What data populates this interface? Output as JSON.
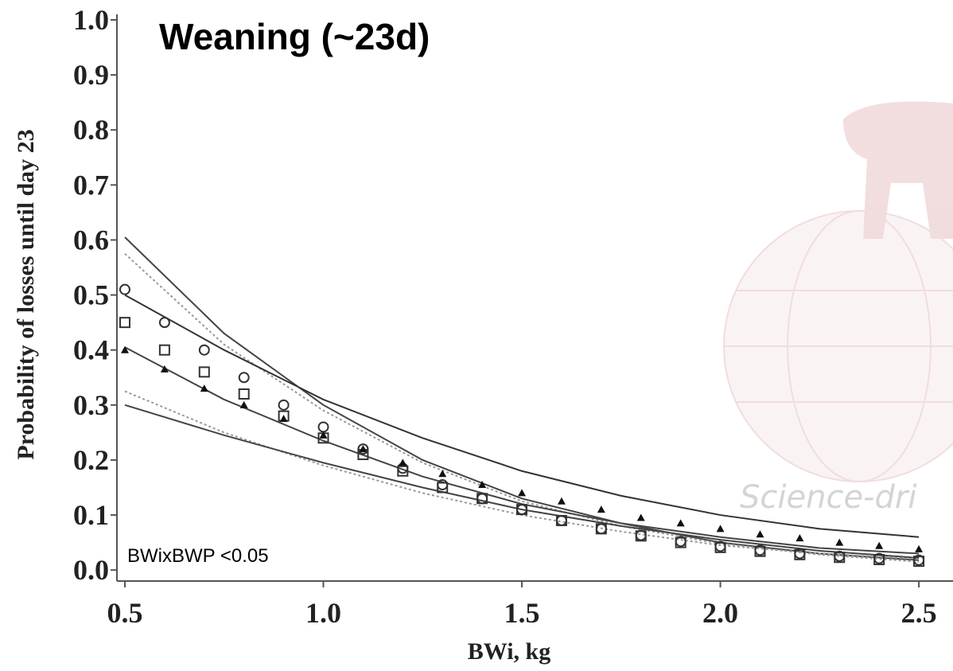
{
  "chart_data": {
    "type": "scatter",
    "title": "Weaning (~23d)",
    "x_label": "BWi, kg",
    "y_label": "Probability of losses until day 23",
    "annotation": "BWixBWP <0.05",
    "watermark": "Science-dri",
    "xlim": [
      0.48,
      2.58
    ],
    "ylim": [
      -0.02,
      1.0
    ],
    "xticks": [
      0.5,
      {
        "value": 1,
        "label": "1.0"
      },
      1.5,
      {
        "value": 2,
        "label": "2.0"
      },
      2.5
    ],
    "yticks": [
      {
        "value": 0,
        "label": "0.0"
      },
      0.1,
      0.2,
      0.3,
      0.4,
      0.5,
      0.6,
      0.7,
      0.8,
      0.9,
      {
        "value": 1,
        "label": "1.0"
      }
    ],
    "x": [
      0.5,
      0.6,
      0.7,
      0.8,
      0.9,
      1.0,
      1.1,
      1.2,
      1.3,
      1.4,
      1.5,
      1.6,
      1.7,
      1.8,
      1.9,
      2.0,
      2.1,
      2.2,
      2.3,
      2.4,
      2.5
    ],
    "series": [
      {
        "marker": "circle",
        "color": "#333",
        "values": [
          0.51,
          0.45,
          0.4,
          0.35,
          0.3,
          0.26,
          0.22,
          0.185,
          0.155,
          0.13,
          0.11,
          0.09,
          0.075,
          0.063,
          0.052,
          0.043,
          0.036,
          0.03,
          0.025,
          0.021,
          0.018
        ]
      },
      {
        "marker": "square",
        "color": "#333",
        "values": [
          0.45,
          0.4,
          0.36,
          0.32,
          0.28,
          0.24,
          0.21,
          0.18,
          0.15,
          0.13,
          0.11,
          0.09,
          0.075,
          0.062,
          0.05,
          0.041,
          0.034,
          0.028,
          0.023,
          0.019,
          0.016
        ]
      },
      {
        "marker": "triangle",
        "color": "#111",
        "values": [
          0.4,
          0.365,
          0.33,
          0.3,
          0.275,
          0.245,
          0.22,
          0.195,
          0.175,
          0.155,
          0.14,
          0.125,
          0.11,
          0.095,
          0.085,
          0.075,
          0.065,
          0.058,
          0.05,
          0.044,
          0.038
        ]
      }
    ],
    "curves": {
      "x": [
        0.5,
        0.75,
        1.0,
        1.25,
        1.5,
        1.75,
        2.0,
        2.25,
        2.5
      ],
      "lines": [
        {
          "color": "#444",
          "dash": false,
          "values": [
            0.605,
            0.43,
            0.3,
            0.2,
            0.13,
            0.085,
            0.05,
            0.03,
            0.018
          ]
        },
        {
          "color": "#999",
          "dash": true,
          "values": [
            0.575,
            0.41,
            0.29,
            0.195,
            0.125,
            0.08,
            0.048,
            0.028,
            0.015
          ]
        },
        {
          "color": "#333",
          "dash": false,
          "values": [
            0.5,
            0.4,
            0.31,
            0.24,
            0.18,
            0.135,
            0.1,
            0.075,
            0.06
          ]
        },
        {
          "color": "#444",
          "dash": false,
          "values": [
            0.405,
            0.31,
            0.235,
            0.17,
            0.12,
            0.085,
            0.06,
            0.04,
            0.03
          ]
        },
        {
          "color": "#999",
          "dash": true,
          "values": [
            0.325,
            0.25,
            0.19,
            0.14,
            0.1,
            0.07,
            0.045,
            0.03,
            0.02
          ]
        },
        {
          "color": "#444",
          "dash": false,
          "values": [
            0.3,
            0.245,
            0.195,
            0.15,
            0.11,
            0.08,
            0.055,
            0.035,
            0.022
          ]
        }
      ]
    }
  }
}
